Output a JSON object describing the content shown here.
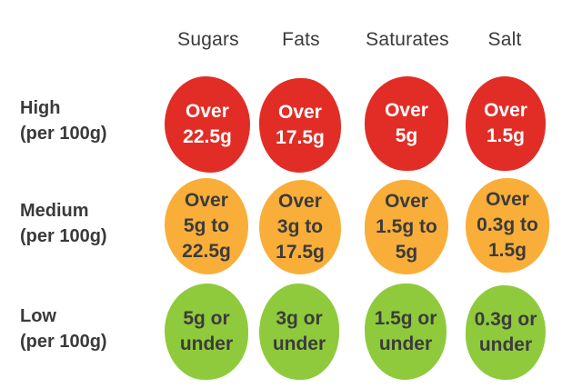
{
  "columns": [
    "Sugars",
    "Fats",
    "Saturates",
    "Salt"
  ],
  "rows": [
    {
      "level": "High",
      "basis": "(per 100g)",
      "color": "#e12d26",
      "text_color": "#ffffff",
      "cells": [
        "Over\n22.5g",
        "Over\n17.5g",
        "Over\n5g",
        "Over\n1.5g"
      ]
    },
    {
      "level": "Medium",
      "basis": "(per 100g)",
      "color": "#f9ae3a",
      "text_color": "#3b3b3b",
      "cells": [
        "Over\n5g to\n22.5g",
        "Over\n3g to\n17.5g",
        "Over\n1.5g to\n5g",
        "Over\n0.3g to\n1.5g"
      ]
    },
    {
      "level": "Low",
      "basis": "(per 100g)",
      "color": "#8fca3c",
      "text_color": "#3b3b3b",
      "cells": [
        "5g or\nunder",
        "3g or\nunder",
        "1.5g or\nunder",
        "0.3g or\nunder"
      ]
    }
  ]
}
